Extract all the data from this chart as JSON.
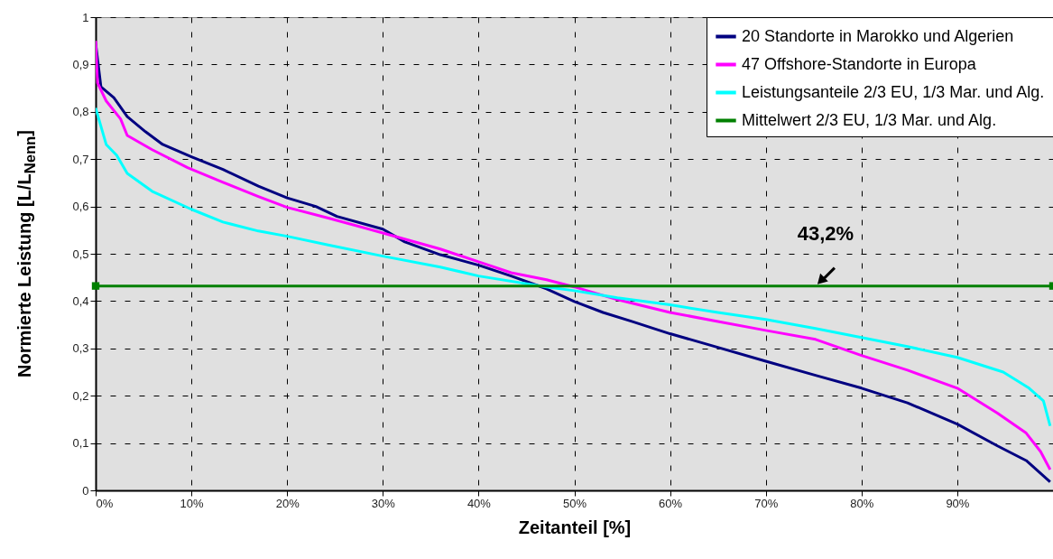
{
  "chart_data": {
    "type": "line",
    "xlabel": "Zeitanteil [%]",
    "ylabel": "Normierte Leistung [L/L$_{Nenn}$]",
    "xlim": [
      0,
      100
    ],
    "ylim": [
      0,
      1
    ],
    "xticks": [
      {
        "value": 0,
        "label": "0%"
      },
      {
        "value": 10,
        "label": "10%"
      },
      {
        "value": 20,
        "label": "20%"
      },
      {
        "value": 30,
        "label": "30%"
      },
      {
        "value": 40,
        "label": "40%"
      },
      {
        "value": 50,
        "label": "50%"
      },
      {
        "value": 60,
        "label": "60%"
      },
      {
        "value": 70,
        "label": "70%"
      },
      {
        "value": 80,
        "label": "80%"
      },
      {
        "value": 90,
        "label": "90%"
      },
      {
        "value": 100,
        "label": null
      }
    ],
    "yticks": [
      0,
      {
        "value": 0.1,
        "label": "0,1"
      },
      {
        "value": 0.2,
        "label": "0,2"
      },
      {
        "value": 0.3,
        "label": "0,3"
      },
      {
        "value": 0.4,
        "label": "0,4"
      },
      {
        "value": 0.5,
        "label": "0,5"
      },
      {
        "value": 0.6,
        "label": "0,6"
      },
      {
        "value": 0.7,
        "label": "0,7"
      },
      {
        "value": 0.8,
        "label": "0,8"
      },
      {
        "value": 0.9,
        "label": "0,9"
      },
      1
    ],
    "grid": true,
    "legend": "top right",
    "line_style": "solid",
    "series": [
      {
        "name": "20 Standorte in Marokko und Algerien",
        "color": "#000080",
        "x": [
          0,
          0.55,
          1.9,
          3.3,
          5.2,
          7,
          10,
          13.3,
          17,
          20,
          23,
          25.2,
          30,
          32.3,
          36,
          40,
          43.4,
          47.1,
          50,
          53,
          56,
          60,
          64,
          70,
          75.2,
          80,
          84.8,
          90,
          94.2,
          97.2,
          99.7
        ],
        "values": [
          0.945,
          0.853,
          0.83,
          0.79,
          0.758,
          0.731,
          0.705,
          0.678,
          0.643,
          0.618,
          0.6,
          0.579,
          0.552,
          0.525,
          0.498,
          0.476,
          0.453,
          0.426,
          0.399,
          0.376,
          0.357,
          0.331,
          0.308,
          0.273,
          0.243,
          0.216,
          0.185,
          0.14,
          0.094,
          0.063,
          0.018
        ]
      },
      {
        "name": "47 Offshore-Standorte in Europa",
        "color": "#ff00ff",
        "x": [
          0,
          0.2,
          1.1,
          2.6,
          3.3,
          5.9,
          9.6,
          13.3,
          17,
          20,
          24.4,
          30,
          36,
          40,
          43.4,
          47.1,
          50,
          54.5,
          60,
          65,
          70,
          75.2,
          80,
          84.8,
          90,
          94.2,
          97.2,
          98.7,
          99.7
        ],
        "values": [
          0.95,
          0.861,
          0.823,
          0.785,
          0.75,
          0.72,
          0.682,
          0.651,
          0.621,
          0.598,
          0.575,
          0.544,
          0.51,
          0.483,
          0.46,
          0.445,
          0.43,
          0.403,
          0.376,
          0.357,
          0.338,
          0.319,
          0.285,
          0.254,
          0.216,
          0.163,
          0.121,
          0.082,
          0.044
        ]
      },
      {
        "name": "Leistungsanteile 2/3 EU, 1/3 Mar. und Alg.",
        "color": "#00ffff",
        "x": [
          0,
          1.1,
          2.2,
          3.3,
          5.9,
          10,
          13.3,
          17,
          20,
          24.4,
          30,
          36,
          40,
          47.1,
          50,
          54.5,
          60,
          65,
          70,
          75.2,
          80,
          84.8,
          90,
          94.8,
          97.5,
          99,
          99.7
        ],
        "values": [
          0.808,
          0.731,
          0.708,
          0.67,
          0.632,
          0.594,
          0.567,
          0.548,
          0.537,
          0.518,
          0.495,
          0.472,
          0.453,
          0.43,
          0.422,
          0.407,
          0.392,
          0.376,
          0.361,
          0.342,
          0.323,
          0.304,
          0.281,
          0.25,
          0.216,
          0.189,
          0.136
        ]
      },
      {
        "name": "Mittelwert 2/3 EU, 1/3 Mar. und Alg.",
        "color": "#008000",
        "marker": "square",
        "x": [
          0,
          100
        ],
        "values": [
          0.432,
          0.432
        ]
      }
    ],
    "annotations": [
      {
        "text": "43,2%",
        "x": 75.3,
        "y": 0.432
      }
    ]
  }
}
